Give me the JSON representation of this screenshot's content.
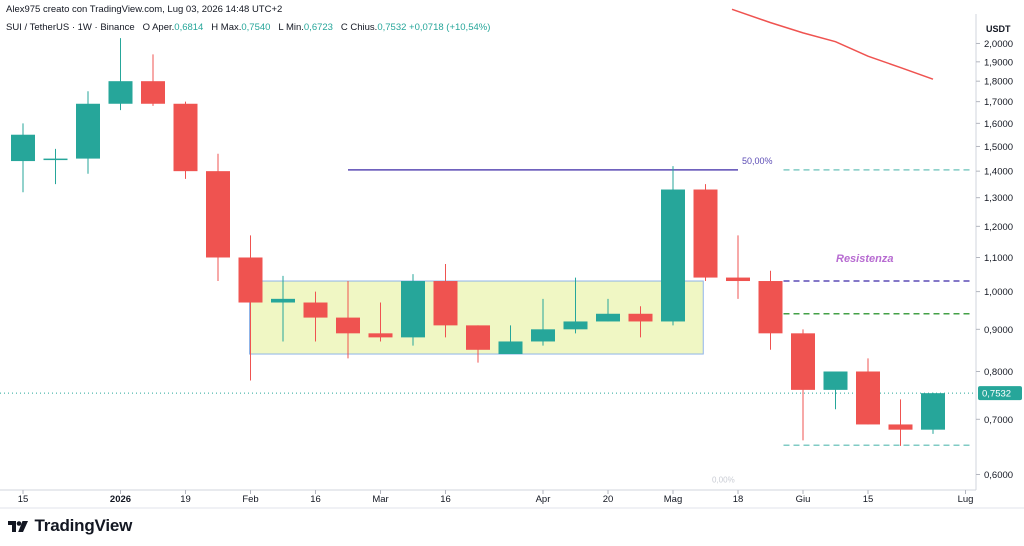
{
  "header": {
    "title": "Alex975 creato con TradingView.com, Lug 03, 2026 14:48 UTC+2"
  },
  "legend": {
    "symbol": "SUI / TetherUS · 1W · Binance",
    "open_label": "O",
    "open_text": "Aper.",
    "open_value": "0,6814",
    "high_label": "H",
    "high_text": "Max.",
    "high_value": "0,7540",
    "low_label": "L",
    "low_text": "Min.",
    "low_value": "0,6723",
    "close_label": "C",
    "close_text": "Chius.",
    "close_value": "0,7532",
    "change_value": "+0,0718 (+10,54%)"
  },
  "footer": {
    "brand": "TradingView",
    "logo_icon": "tradingview-logo-icon"
  },
  "colors": {
    "up": "#26a69a",
    "down": "#ef5350",
    "range_fill": "#f0f7c4",
    "range_border": "#8fb4e8",
    "hline": "#5b4bb5",
    "red_line": "#ef5350"
  },
  "chart_data": {
    "type": "candlestick",
    "y_axis_unit": "USDT",
    "y_scale": "log",
    "ylim": [
      0.59,
      2.2
    ],
    "y_ticks": [
      "2,0000",
      "1,9000",
      "1,8000",
      "1,7000",
      "1,6000",
      "1,5000",
      "1,4000",
      "1,3000",
      "1,2000",
      "1,1000",
      "1,0000",
      "0,9000",
      "0,8000",
      "0,7000",
      "0,6000"
    ],
    "y_tick_values": [
      2.0,
      1.9,
      1.8,
      1.7,
      1.6,
      1.5,
      1.4,
      1.3,
      1.2,
      1.1,
      1.0,
      0.9,
      0.8,
      0.7,
      0.6
    ],
    "x_labels": [
      "15",
      "2026",
      "19",
      "Feb",
      "16",
      "Mar",
      "16",
      "Apr",
      "20",
      "Mag",
      "18",
      "Giu",
      "15",
      "Lug"
    ],
    "x_label_index": [
      0,
      3,
      5,
      7,
      9,
      11,
      13,
      16,
      18,
      20,
      22,
      24,
      26,
      29
    ],
    "last_price_label": "0,7532",
    "candles": [
      {
        "o": 1.44,
        "h": 1.6,
        "l": 1.32,
        "c": 1.55
      },
      {
        "o": 1.45,
        "h": 1.49,
        "l": 1.35,
        "c": 1.45
      },
      {
        "o": 1.45,
        "h": 1.75,
        "l": 1.39,
        "c": 1.69
      },
      {
        "o": 1.69,
        "h": 2.03,
        "l": 1.66,
        "c": 1.8
      },
      {
        "o": 1.8,
        "h": 1.94,
        "l": 1.68,
        "c": 1.69
      },
      {
        "o": 1.69,
        "h": 1.7,
        "l": 1.37,
        "c": 1.4
      },
      {
        "o": 1.4,
        "h": 1.47,
        "l": 1.03,
        "c": 1.1
      },
      {
        "o": 1.1,
        "h": 1.17,
        "l": 0.78,
        "c": 0.97
      },
      {
        "o": 0.97,
        "h": 1.045,
        "l": 0.87,
        "c": 0.98
      },
      {
        "o": 0.97,
        "h": 1.0,
        "l": 0.87,
        "c": 0.93
      },
      {
        "o": 0.93,
        "h": 1.03,
        "l": 0.83,
        "c": 0.89
      },
      {
        "o": 0.89,
        "h": 0.97,
        "l": 0.87,
        "c": 0.88
      },
      {
        "o": 0.88,
        "h": 1.05,
        "l": 0.86,
        "c": 1.03
      },
      {
        "o": 1.03,
        "h": 1.08,
        "l": 0.88,
        "c": 0.91
      },
      {
        "o": 0.91,
        "h": 0.91,
        "l": 0.82,
        "c": 0.85
      },
      {
        "o": 0.84,
        "h": 0.91,
        "l": 0.84,
        "c": 0.87
      },
      {
        "o": 0.87,
        "h": 0.98,
        "l": 0.86,
        "c": 0.9
      },
      {
        "o": 0.9,
        "h": 1.04,
        "l": 0.89,
        "c": 0.92
      },
      {
        "o": 0.92,
        "h": 0.98,
        "l": 0.92,
        "c": 0.94
      },
      {
        "o": 0.94,
        "h": 0.96,
        "l": 0.88,
        "c": 0.92
      },
      {
        "o": 0.92,
        "h": 1.42,
        "l": 0.91,
        "c": 1.33
      },
      {
        "o": 1.33,
        "h": 1.35,
        "l": 1.03,
        "c": 1.04
      },
      {
        "o": 1.04,
        "h": 1.17,
        "l": 0.98,
        "c": 1.03
      },
      {
        "o": 1.03,
        "h": 1.06,
        "l": 0.85,
        "c": 0.89
      },
      {
        "o": 0.89,
        "h": 0.9,
        "l": 0.66,
        "c": 0.76
      },
      {
        "o": 0.76,
        "h": 0.8,
        "l": 0.72,
        "c": 0.8
      },
      {
        "o": 0.8,
        "h": 0.83,
        "l": 0.69,
        "c": 0.69
      },
      {
        "o": 0.69,
        "h": 0.74,
        "l": 0.65,
        "c": 0.68
      },
      {
        "o": 0.68,
        "h": 0.754,
        "l": 0.672,
        "c": 0.753
      }
    ],
    "moving_average": [
      {
        "i": 22,
        "v": 2.2
      },
      {
        "i": 23,
        "v": 2.12
      },
      {
        "i": 24,
        "v": 2.06
      },
      {
        "i": 25,
        "v": 2.01
      },
      {
        "i": 26,
        "v": 1.93
      },
      {
        "i": 27,
        "v": 1.87
      },
      {
        "i": 28,
        "v": 1.81
      }
    ],
    "range_box": {
      "i0": 7.0,
      "i1": 20.9,
      "top": 1.03,
      "bottom": 0.84
    },
    "fib_line": {
      "label": "50,00%",
      "value": 1.405,
      "i0": 10,
      "i1": 22
    },
    "fib_low_label": "0,00%",
    "fib_low_value": 0.592,
    "resistenza_label": "Resistenza",
    "resistenza_value": 1.095,
    "dashed_levels": [
      {
        "value": 1.405,
        "color": "#80cbc4"
      },
      {
        "value": 1.03,
        "color": "#5b4bb5"
      },
      {
        "value": 0.94,
        "color": "#43a047"
      },
      {
        "value": 0.651,
        "color": "#80cbc4"
      }
    ],
    "last_price_line": 0.7532
  }
}
